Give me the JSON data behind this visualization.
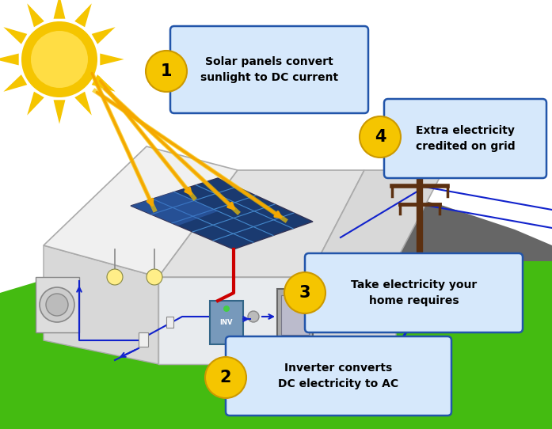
{
  "background_color": "#ffffff",
  "labels": {
    "1": "Solar panels convert\nsunlight to DC current",
    "2": "Inverter converts\nDC electricity to AC",
    "3": "Take electricity your\nhome requires",
    "4": "Extra electricity\ncredited on grid"
  },
  "box_fc": "#d6e8fb",
  "box_ec": "#2255aa",
  "circle_color": "#f5c500",
  "sun_color": "#f5c500",
  "sun_ray_color": "#f5a800",
  "dc_wire_color": "#cc0000",
  "ac_wire_color": "#1122cc",
  "pole_color": "#5c3010",
  "grass_color": "#44bb11",
  "hill_color": "#666666",
  "wall_left_color": "#e0e0e0",
  "wall_front_color": "#cccccc",
  "roof_left_color": "#f2f2f2",
  "roof_right_color": "#e6e6e6",
  "solar_dark": "#1a3a70",
  "solar_grid": "#4488cc",
  "label_fontsize": 10,
  "circle_fontsize": 15
}
